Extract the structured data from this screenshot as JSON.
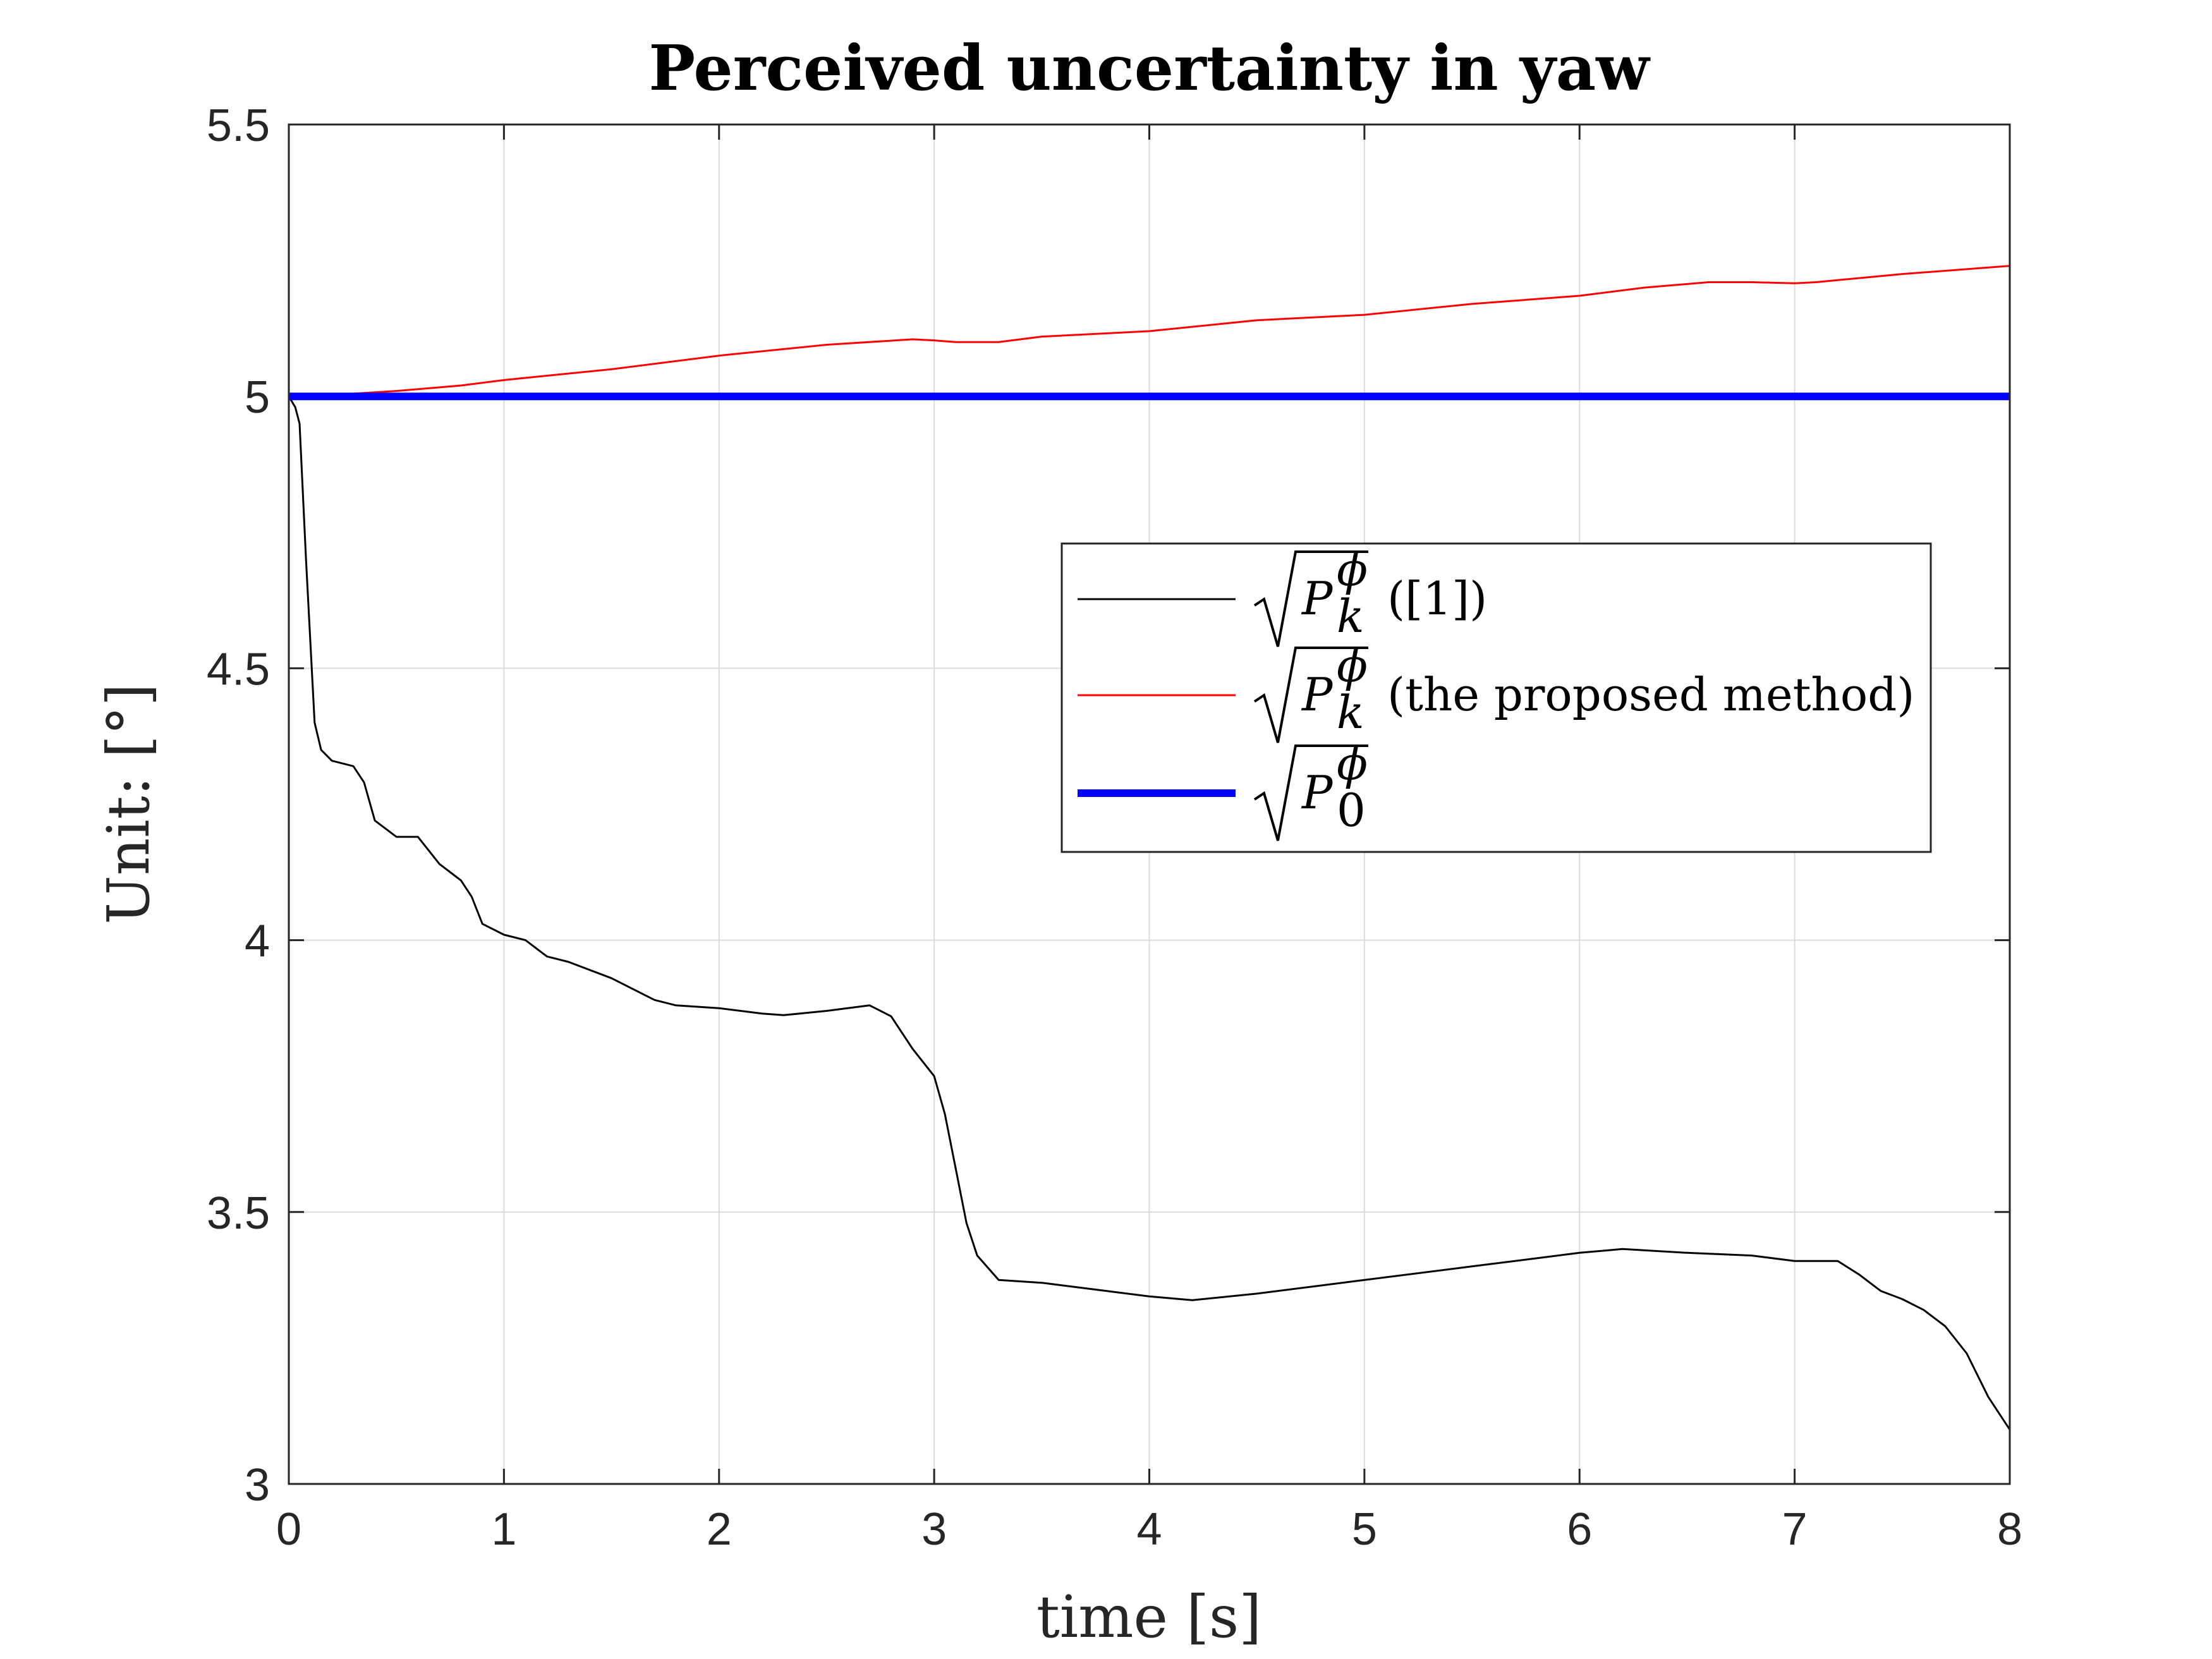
{
  "chart_data": {
    "type": "line",
    "title": "Perceived uncertainty in yaw",
    "xlabel": "time [s]",
    "ylabel": "Unit: [°]",
    "xlim": [
      0,
      8
    ],
    "ylim": [
      3,
      5.5
    ],
    "xticks": [
      "0",
      "1",
      "2",
      "3",
      "4",
      "5",
      "6",
      "7",
      "8"
    ],
    "yticks": [
      "3",
      "3.5",
      "4",
      "4.5",
      "5",
      "5.5"
    ],
    "grid": true,
    "legend_position": "center-right",
    "series": [
      {
        "name": "√P_k^ϕ ([1])",
        "legend_suffix": "([1])",
        "color": "#000000",
        "line_width": 1,
        "x": [
          0,
          0.03,
          0.05,
          0.08,
          0.1,
          0.12,
          0.15,
          0.2,
          0.3,
          0.35,
          0.4,
          0.5,
          0.6,
          0.7,
          0.8,
          0.85,
          0.9,
          1.0,
          1.1,
          1.2,
          1.3,
          1.5,
          1.7,
          1.8,
          2.0,
          2.2,
          2.3,
          2.5,
          2.7,
          2.8,
          2.9,
          3.0,
          3.05,
          3.1,
          3.15,
          3.2,
          3.3,
          3.5,
          3.8,
          4.0,
          4.2,
          4.5,
          5.0,
          5.5,
          6.0,
          6.2,
          6.5,
          6.8,
          7.0,
          7.2,
          7.3,
          7.4,
          7.5,
          7.6,
          7.7,
          7.8,
          7.9,
          8.0
        ],
        "y": [
          5.0,
          4.98,
          4.95,
          4.7,
          4.55,
          4.4,
          4.35,
          4.33,
          4.32,
          4.29,
          4.22,
          4.19,
          4.19,
          4.14,
          4.11,
          4.08,
          4.03,
          4.01,
          4.0,
          3.97,
          3.96,
          3.93,
          3.89,
          3.88,
          3.875,
          3.865,
          3.862,
          3.87,
          3.88,
          3.86,
          3.8,
          3.75,
          3.68,
          3.58,
          3.48,
          3.42,
          3.375,
          3.37,
          3.355,
          3.345,
          3.338,
          3.35,
          3.375,
          3.4,
          3.425,
          3.432,
          3.425,
          3.42,
          3.41,
          3.41,
          3.385,
          3.355,
          3.34,
          3.32,
          3.29,
          3.24,
          3.16,
          3.1
        ]
      },
      {
        "name": "√P_k^ϕ (the proposed method)",
        "legend_suffix": "(the proposed method)",
        "color": "#ff0000",
        "line_width": 1,
        "x": [
          0,
          0.3,
          0.5,
          0.8,
          1.0,
          1.5,
          2.0,
          2.5,
          2.9,
          3.0,
          3.1,
          3.3,
          3.5,
          4.0,
          4.5,
          5.0,
          5.5,
          6.0,
          6.3,
          6.6,
          6.8,
          7.0,
          7.1,
          7.5,
          8.0
        ],
        "y": [
          5.0,
          5.005,
          5.01,
          5.02,
          5.03,
          5.05,
          5.075,
          5.095,
          5.105,
          5.103,
          5.1,
          5.1,
          5.11,
          5.12,
          5.14,
          5.15,
          5.17,
          5.185,
          5.2,
          5.21,
          5.21,
          5.208,
          5.21,
          5.225,
          5.24
        ]
      },
      {
        "name": "√P_0^ϕ",
        "legend_suffix": "",
        "color": "#0000ff",
        "line_width": 4,
        "x": [
          0,
          8
        ],
        "y": [
          5.0,
          5.0
        ]
      }
    ]
  }
}
